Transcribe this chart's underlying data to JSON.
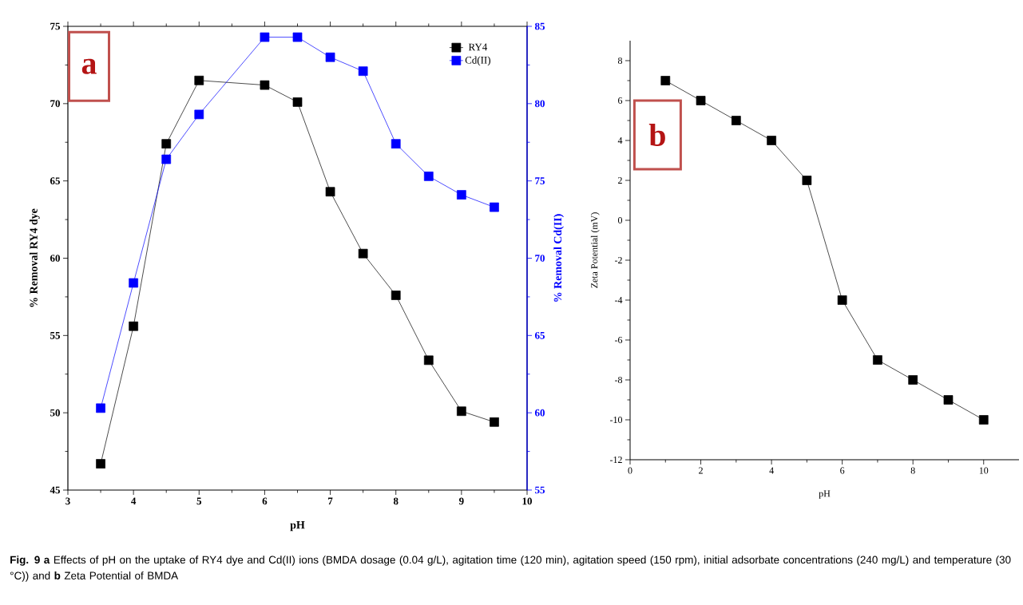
{
  "chart_data": [
    {
      "type": "line",
      "xlabel": "pH",
      "ylabel": "% Removal RY4 dye",
      "y2label": "% Removal Cd(II)",
      "x": [
        3.5,
        4,
        4.5,
        5,
        6,
        6.5,
        7,
        7.5,
        8,
        8.5,
        9,
        9.5
      ],
      "series": [
        {
          "name": "RY4",
          "color": "#000000",
          "values": [
            46.7,
            55.6,
            67.4,
            71.5,
            71.2,
            70.1,
            64.3,
            60.3,
            57.6,
            53.4,
            50.1,
            49.4
          ]
        },
        {
          "name": "Cd(II)",
          "color": "#0000ff",
          "axis": "y2",
          "values": [
            60.3,
            68.4,
            76.4,
            79.3,
            84.3,
            84.3,
            83.0,
            82.1,
            77.4,
            75.3,
            74.1,
            73.3
          ]
        }
      ],
      "xlim": [
        3,
        10
      ],
      "xticks": [
        3,
        4,
        5,
        6,
        7,
        8,
        9,
        10
      ],
      "ylim": [
        45,
        75
      ],
      "yticks": [
        45,
        50,
        55,
        60,
        65,
        70,
        75
      ],
      "y2lim": [
        55,
        85
      ],
      "y2ticks": [
        55,
        60,
        65,
        70,
        75,
        80,
        85
      ],
      "legend": "top right",
      "marker": "square",
      "annotations": [
        "a",
        "**Fig. 9 a** Effects of pH on the uptake of RY4 dye and Cd(II) ions (BMDA dosage (0.04 g/L), agitation time (120 min), agitation speed (150 rpm), initial adsorbate concentrations (240 mg/L) and temperature (30 °C)) and **b** Zeta Potential of BMDA"
      ]
    },
    {
      "type": "line",
      "xlabel": "pH",
      "ylabel": "Zeta Potential (mV)",
      "x": [
        1,
        2,
        3,
        4,
        5,
        6,
        7,
        8,
        9,
        10
      ],
      "series": [
        {
          "color": "#000000",
          "values": [
            7,
            6,
            5,
            4,
            2,
            -4,
            -7,
            -8,
            -9,
            -10
          ]
        }
      ],
      "xlim": [
        0,
        11
      ],
      "xticks": [
        0,
        2,
        4,
        6,
        8,
        10
      ],
      "ylim": [
        -12,
        9
      ],
      "yticks": [
        -12,
        -10,
        -8,
        -6,
        -4,
        -2,
        0,
        2,
        4,
        6,
        8
      ],
      "marker": "square",
      "annotations": [
        "b"
      ]
    }
  ]
}
